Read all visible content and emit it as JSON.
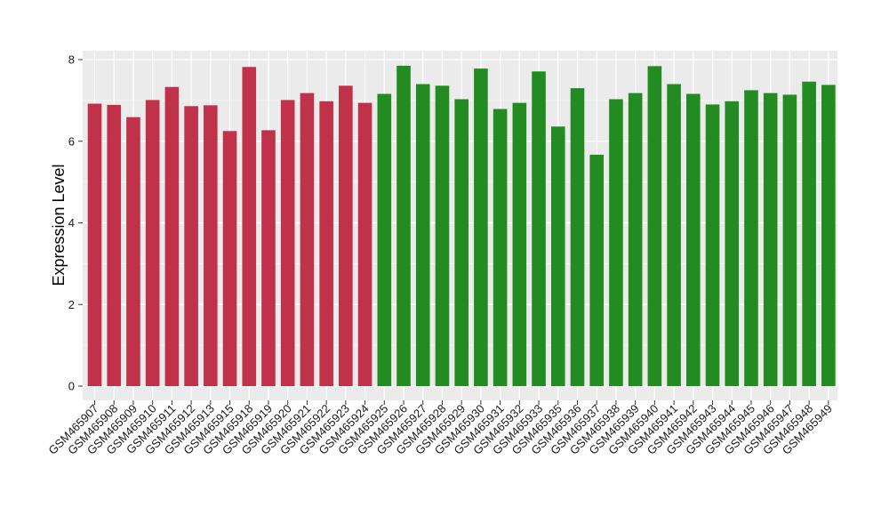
{
  "chart_data": {
    "type": "bar",
    "title": "",
    "xlabel": "",
    "ylabel": "Expression Level",
    "ylim": [
      0,
      8
    ],
    "yticks": [
      0,
      2,
      4,
      6,
      8
    ],
    "grid": true,
    "legend": "none",
    "colors": {
      "group_a": "#C0314A",
      "group_b": "#228B22",
      "panel": "#EBEBEB",
      "grid": "#FFFFFF"
    },
    "categories": [
      "GSM465907",
      "GSM465908",
      "GSM465909",
      "GSM465910",
      "GSM465911",
      "GSM465912",
      "GSM465913",
      "GSM465915",
      "GSM465918",
      "GSM465919",
      "GSM465920",
      "GSM465921",
      "GSM465922",
      "GSM465923",
      "GSM465924",
      "GSM465925",
      "GSM465926",
      "GSM465927",
      "GSM465928",
      "GSM465929",
      "GSM465930",
      "GSM465931",
      "GSM465932",
      "GSM465933",
      "GSM465935",
      "GSM465936",
      "GSM465937",
      "GSM465938",
      "GSM465939",
      "GSM465940",
      "GSM465941",
      "GSM465942",
      "GSM465943",
      "GSM465944",
      "GSM465945",
      "GSM465946",
      "GSM465947",
      "GSM465948",
      "GSM465949"
    ],
    "values": [
      6.92,
      6.89,
      6.59,
      7.01,
      7.33,
      6.86,
      6.88,
      6.25,
      7.82,
      6.27,
      7.01,
      7.18,
      6.98,
      7.36,
      6.94,
      7.16,
      7.85,
      7.4,
      7.36,
      7.03,
      7.78,
      6.79,
      6.94,
      7.71,
      6.36,
      7.3,
      5.67,
      7.03,
      7.18,
      7.84,
      7.4,
      7.16,
      6.9,
      6.98,
      7.25,
      7.18,
      7.14,
      7.46,
      7.38
    ],
    "group": [
      "a",
      "a",
      "a",
      "a",
      "a",
      "a",
      "a",
      "a",
      "a",
      "a",
      "a",
      "a",
      "a",
      "a",
      "a",
      "b",
      "b",
      "b",
      "b",
      "b",
      "b",
      "b",
      "b",
      "b",
      "b",
      "b",
      "b",
      "b",
      "b",
      "b",
      "b",
      "b",
      "b",
      "b",
      "b",
      "b",
      "b",
      "b",
      "b"
    ]
  }
}
